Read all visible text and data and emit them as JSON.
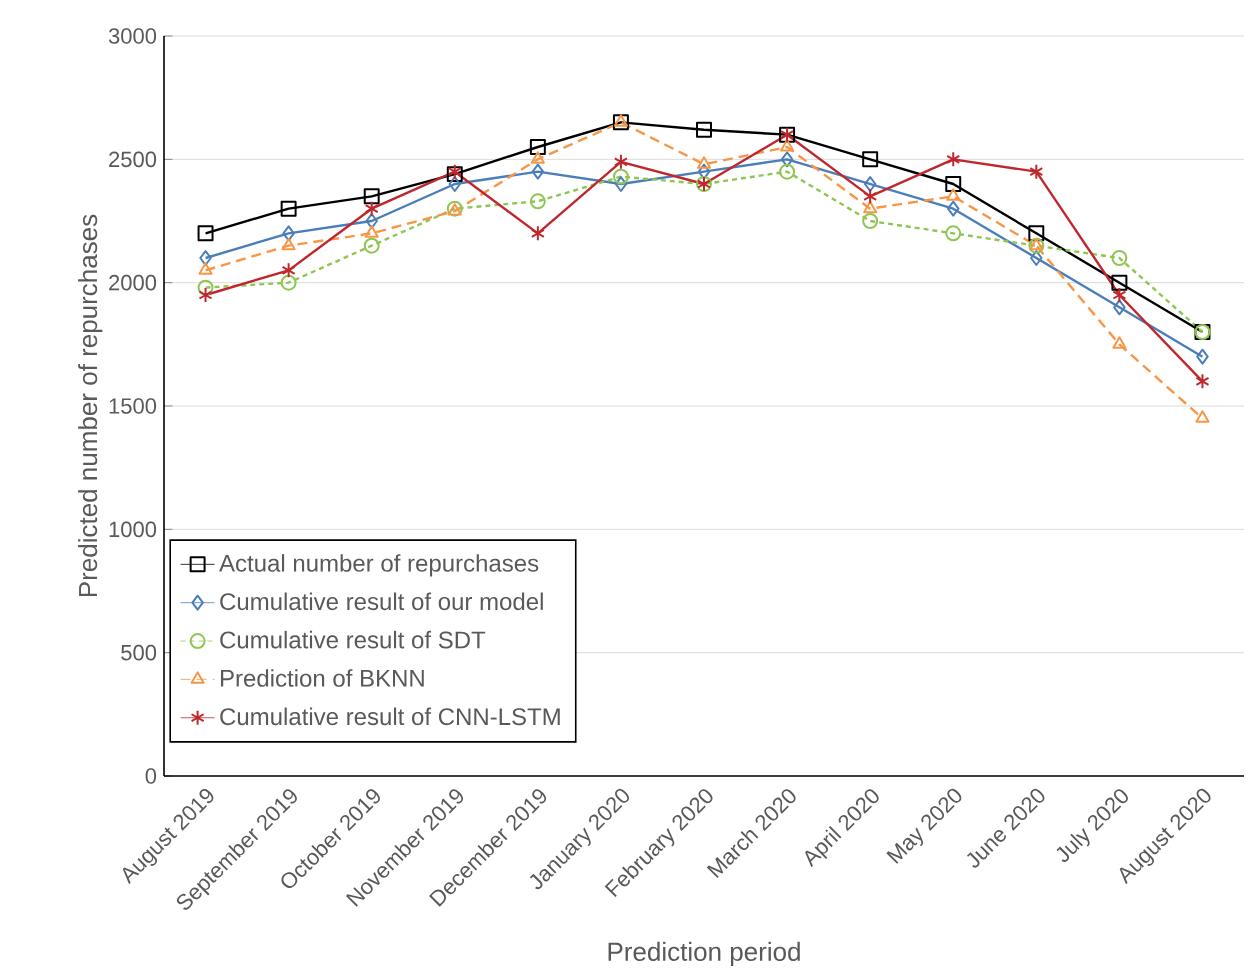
{
  "chart_data": {
    "type": "line",
    "xlabel": "Prediction period",
    "ylabel": "Predicted number of repurchases",
    "categories": [
      "August 2019",
      "September 2019",
      "October 2019",
      "November 2019",
      "December 2019",
      "January 2020",
      "February 2020",
      "March 2020",
      "April 2020",
      "May 2020",
      "June 2020",
      "July 2020",
      "August 2020"
    ],
    "series": [
      {
        "name": "Actual number of repurchases",
        "color": "#000000",
        "marker": "square",
        "line_style": "solid",
        "values": [
          2200,
          2300,
          2350,
          2440,
          2550,
          2650,
          2620,
          2600,
          2500,
          2400,
          2200,
          2000,
          1800
        ]
      },
      {
        "name": "Cumulative result of our model",
        "color": "#4a7ebb",
        "marker": "diamond",
        "line_style": "solid",
        "values": [
          2100,
          2200,
          2250,
          2400,
          2450,
          2400,
          2450,
          2500,
          2400,
          2300,
          2100,
          1900,
          1700
        ]
      },
      {
        "name": "Cumulative result of SDT",
        "color": "#8fc651",
        "marker": "circle",
        "line_style": "dotted",
        "values": [
          1980,
          2000,
          2150,
          2300,
          2330,
          2430,
          2400,
          2450,
          2250,
          2200,
          2150,
          2100,
          1800
        ]
      },
      {
        "name": "Prediction of BKNN",
        "color": "#f79646",
        "marker": "triangle",
        "line_style": "dashed",
        "values": [
          2050,
          2150,
          2200,
          2290,
          2500,
          2650,
          2480,
          2550,
          2300,
          2350,
          2150,
          1750,
          1450
        ]
      },
      {
        "name": "Cumulative result of CNN-LSTM",
        "color": "#c0272d",
        "marker": "cross",
        "line_style": "solid",
        "values": [
          1950,
          2050,
          2300,
          2450,
          2200,
          2490,
          2400,
          2600,
          2350,
          2500,
          2450,
          1950,
          1600
        ]
      }
    ],
    "ylim": [
      0,
      3000
    ],
    "yticks": [
      0,
      500,
      1000,
      1500,
      2000,
      2500,
      3000
    ],
    "grid": "y",
    "legend": "bottom left"
  }
}
